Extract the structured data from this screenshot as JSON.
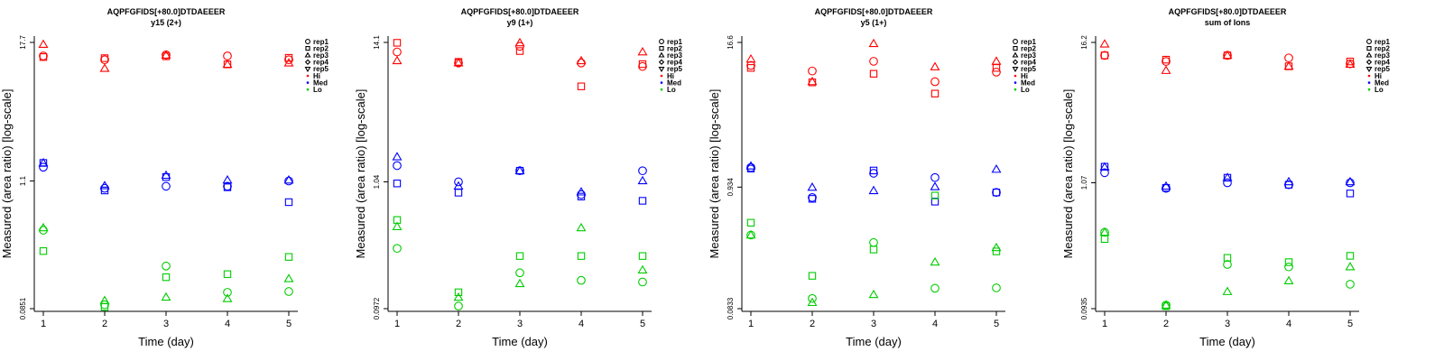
{
  "chart_data": [
    {
      "type": "scatter",
      "title": "AQPFGFIDS[+80.0]DTDAEEER",
      "subtitle": "y15 (2+)",
      "xlabel": "Time (day)",
      "ylabel": "Measured (area ratio) [log-scale]",
      "x_ticks": [
        "1",
        "2",
        "3",
        "4",
        "5"
      ],
      "y_ticks": [
        "0.0851",
        "1.1",
        "17.7"
      ],
      "y_scale": "log",
      "ylim": [
        0.0851,
        17.7
      ],
      "legend_position": "right",
      "legend": [
        {
          "label": "rep1",
          "marker": "circle"
        },
        {
          "label": "rep2",
          "marker": "square"
        },
        {
          "label": "rep3",
          "marker": "triangle"
        },
        {
          "label": "rep4",
          "marker": "diamond"
        },
        {
          "label": "rep5",
          "marker": "triangle-down"
        },
        {
          "label": "Hi",
          "color": "#ff0000"
        },
        {
          "label": "Med",
          "color": "#0000ff"
        },
        {
          "label": "Lo",
          "color": "#00cc00"
        }
      ],
      "series": [
        {
          "level": "Hi",
          "rep": "rep1",
          "x": [
            1,
            2,
            3,
            4,
            5
          ],
          "y": [
            13.5,
            12.5,
            13.8,
            13.5,
            12.5
          ]
        },
        {
          "level": "Hi",
          "rep": "rep2",
          "x": [
            1,
            2,
            3,
            4,
            5
          ],
          "y": [
            13.2,
            12.9,
            13.4,
            11.4,
            13.0
          ]
        },
        {
          "level": "Hi",
          "rep": "rep3",
          "x": [
            1,
            2,
            3,
            4,
            5
          ],
          "y": [
            17.0,
            10.5,
            13.7,
            11.4,
            11.7
          ]
        },
        {
          "level": "Med",
          "rep": "rep1",
          "x": [
            1,
            2,
            3,
            4,
            5
          ],
          "y": [
            1.45,
            0.95,
            0.99,
            0.99,
            1.1
          ]
        },
        {
          "level": "Med",
          "rep": "rep2",
          "x": [
            1,
            2,
            3,
            4,
            5
          ],
          "y": [
            1.58,
            0.91,
            1.19,
            0.97,
            0.72
          ]
        },
        {
          "level": "Med",
          "rep": "rep3",
          "x": [
            1,
            2,
            3,
            4,
            5
          ],
          "y": [
            1.58,
            1.0,
            1.23,
            1.12,
            1.12
          ]
        },
        {
          "level": "Lo",
          "rep": "rep1",
          "x": [
            1,
            2,
            3,
            4,
            5
          ],
          "y": [
            0.41,
            0.092,
            0.2,
            0.118,
            0.12
          ]
        },
        {
          "level": "Lo",
          "rep": "rep2",
          "x": [
            1,
            2,
            3,
            4,
            5
          ],
          "y": [
            0.27,
            0.088,
            0.16,
            0.17,
            0.24
          ]
        },
        {
          "level": "Lo",
          "rep": "rep3",
          "x": [
            1,
            2,
            3,
            4,
            5
          ],
          "y": [
            0.43,
            0.1,
            0.107,
            0.104,
            0.155
          ]
        }
      ]
    },
    {
      "type": "scatter",
      "title": "AQPFGFIDS[+80.0]DTDAEEER",
      "subtitle": "y9 (1+)",
      "xlabel": "Time (day)",
      "ylabel": "Measured (area ratio) [log-scale]",
      "x_ticks": [
        "1",
        "2",
        "3",
        "4",
        "5"
      ],
      "y_ticks": [
        "0.0972",
        "1.04",
        "14.1"
      ],
      "y_scale": "log",
      "ylim": [
        0.0972,
        14.1
      ],
      "legend_position": "right",
      "legend": [
        {
          "label": "rep1",
          "marker": "circle"
        },
        {
          "label": "rep2",
          "marker": "square"
        },
        {
          "label": "rep3",
          "marker": "triangle"
        },
        {
          "label": "rep4",
          "marker": "diamond"
        },
        {
          "label": "rep5",
          "marker": "triangle-down"
        },
        {
          "label": "Hi",
          "color": "#ff0000"
        },
        {
          "label": "Med",
          "color": "#0000ff"
        },
        {
          "label": "Lo",
          "color": "#00cc00"
        }
      ],
      "series": [
        {
          "level": "Hi",
          "rep": "rep1",
          "x": [
            1,
            2,
            3,
            4,
            5
          ],
          "y": [
            11.8,
            9.6,
            13.1,
            9.6,
            9.0
          ]
        },
        {
          "level": "Hi",
          "rep": "rep2",
          "x": [
            1,
            2,
            3,
            4,
            5
          ],
          "y": [
            14.0,
            9.8,
            12.0,
            6.2,
            9.4
          ]
        },
        {
          "level": "Hi",
          "rep": "rep3",
          "x": [
            1,
            2,
            3,
            4,
            5
          ],
          "y": [
            10.0,
            9.6,
            14.0,
            10.0,
            11.8
          ]
        },
        {
          "level": "Med",
          "rep": "rep1",
          "x": [
            1,
            2,
            3,
            4,
            5
          ],
          "y": [
            1.41,
            1.04,
            1.28,
            0.82,
            1.28
          ]
        },
        {
          "level": "Med",
          "rep": "rep2",
          "x": [
            1,
            2,
            3,
            4,
            5
          ],
          "y": [
            1.01,
            0.85,
            1.28,
            0.79,
            0.73
          ]
        },
        {
          "level": "Med",
          "rep": "rep3",
          "x": [
            1,
            2,
            3,
            4,
            5
          ],
          "y": [
            1.66,
            0.96,
            1.28,
            0.86,
            1.06
          ]
        },
        {
          "level": "Lo",
          "rep": "rep1",
          "x": [
            1,
            2,
            3,
            4,
            5
          ],
          "y": [
            0.3,
            0.102,
            0.19,
            0.165,
            0.16
          ]
        },
        {
          "level": "Lo",
          "rep": "rep2",
          "x": [
            1,
            2,
            3,
            4,
            5
          ],
          "y": [
            0.51,
            0.132,
            0.26,
            0.26,
            0.26
          ]
        },
        {
          "level": "Lo",
          "rep": "rep3",
          "x": [
            1,
            2,
            3,
            4,
            5
          ],
          "y": [
            0.45,
            0.12,
            0.155,
            0.44,
            0.2
          ]
        }
      ]
    },
    {
      "type": "scatter",
      "title": "AQPFGFIDS[+80.0]DTDAEEER",
      "subtitle": "y5 (1+)",
      "xlabel": "Time (day)",
      "ylabel": "Measured (area ratio) [log-scale]",
      "x_ticks": [
        "1",
        "2",
        "3",
        "4",
        "5"
      ],
      "y_ticks": [
        "0.0833",
        "0.934",
        "16.6"
      ],
      "y_scale": "log",
      "ylim": [
        0.0833,
        16.6
      ],
      "legend_position": "right",
      "legend": [
        {
          "label": "rep1",
          "marker": "circle"
        },
        {
          "label": "rep2",
          "marker": "square"
        },
        {
          "label": "rep3",
          "marker": "triangle"
        },
        {
          "label": "rep4",
          "marker": "diamond"
        },
        {
          "label": "rep5",
          "marker": "triangle-down"
        },
        {
          "label": "Hi",
          "color": "#ff0000"
        },
        {
          "label": "Med",
          "color": "#0000ff"
        },
        {
          "label": "Lo",
          "color": "#00cc00"
        }
      ],
      "series": [
        {
          "level": "Hi",
          "rep": "rep1",
          "x": [
            1,
            2,
            3,
            4,
            5
          ],
          "y": [
            10.5,
            9.4,
            11.4,
            7.6,
            9.2
          ]
        },
        {
          "level": "Hi",
          "rep": "rep2",
          "x": [
            1,
            2,
            3,
            4,
            5
          ],
          "y": [
            10.0,
            7.5,
            8.9,
            6.0,
            10.0
          ]
        },
        {
          "level": "Hi",
          "rep": "rep3",
          "x": [
            1,
            2,
            3,
            4,
            5
          ],
          "y": [
            11.9,
            7.6,
            16.2,
            10.2,
            11.4
          ]
        },
        {
          "level": "Med",
          "rep": "rep1",
          "x": [
            1,
            2,
            3,
            4,
            5
          ],
          "y": [
            1.38,
            0.76,
            1.23,
            1.13,
            0.84
          ]
        },
        {
          "level": "Med",
          "rep": "rep2",
          "x": [
            1,
            2,
            3,
            4,
            5
          ],
          "y": [
            1.35,
            0.74,
            1.3,
            0.7,
            0.84
          ]
        },
        {
          "level": "Med",
          "rep": "rep3",
          "x": [
            1,
            2,
            3,
            4,
            5
          ],
          "y": [
            1.42,
            0.93,
            0.87,
            0.94,
            1.33
          ]
        },
        {
          "level": "Lo",
          "rep": "rep1",
          "x": [
            1,
            2,
            3,
            4,
            5
          ],
          "y": [
            0.36,
            0.102,
            0.31,
            0.125,
            0.126
          ]
        },
        {
          "level": "Lo",
          "rep": "rep2",
          "x": [
            1,
            2,
            3,
            4,
            5
          ],
          "y": [
            0.46,
            0.16,
            0.27,
            0.79,
            0.26
          ]
        },
        {
          "level": "Lo",
          "rep": "rep3",
          "x": [
            1,
            2,
            3,
            4,
            5
          ],
          "y": [
            0.36,
            0.094,
            0.11,
            0.21,
            0.28
          ]
        }
      ]
    },
    {
      "type": "scatter",
      "title": "AQPFGFIDS[+80.0]DTDAEEER",
      "subtitle": "sum of Ions",
      "xlabel": "Time (day)",
      "ylabel": "Measured (area ratio) [log-scale]",
      "x_ticks": [
        "1",
        "2",
        "3",
        "4",
        "5"
      ],
      "y_ticks": [
        "0.0935",
        "1.07",
        "16.2"
      ],
      "y_scale": "log",
      "ylim": [
        0.0935,
        16.2
      ],
      "legend_position": "right",
      "legend": [
        {
          "label": "rep1",
          "marker": "circle"
        },
        {
          "label": "rep2",
          "marker": "square"
        },
        {
          "label": "rep3",
          "marker": "triangle"
        },
        {
          "label": "rep4",
          "marker": "diamond"
        },
        {
          "label": "rep5",
          "marker": "triangle-down"
        },
        {
          "label": "Hi",
          "color": "#ff0000"
        },
        {
          "label": "Med",
          "color": "#0000ff"
        },
        {
          "label": "Lo",
          "color": "#00cc00"
        }
      ],
      "series": [
        {
          "level": "Hi",
          "rep": "rep1",
          "x": [
            1,
            2,
            3,
            4,
            5
          ],
          "y": [
            12.6,
            11.2,
            12.6,
            12.0,
            10.7
          ]
        },
        {
          "level": "Hi",
          "rep": "rep2",
          "x": [
            1,
            2,
            3,
            4,
            5
          ],
          "y": [
            12.6,
            11.6,
            12.6,
            10.2,
            11.2
          ]
        },
        {
          "level": "Hi",
          "rep": "rep3",
          "x": [
            1,
            2,
            3,
            4,
            5
          ],
          "y": [
            15.7,
            9.4,
            12.6,
            10.2,
            10.6
          ]
        },
        {
          "level": "Med",
          "rep": "rep1",
          "x": [
            1,
            2,
            3,
            4,
            5
          ],
          "y": [
            1.3,
            0.96,
            1.07,
            1.03,
            1.07
          ]
        },
        {
          "level": "Med",
          "rep": "rep2",
          "x": [
            1,
            2,
            3,
            4,
            5
          ],
          "y": [
            1.46,
            0.97,
            1.18,
            1.03,
            0.87
          ]
        },
        {
          "level": "Med",
          "rep": "rep3",
          "x": [
            1,
            2,
            3,
            4,
            5
          ],
          "y": [
            1.45,
            1.0,
            1.18,
            1.09,
            1.09
          ]
        },
        {
          "level": "Lo",
          "rep": "rep1",
          "x": [
            1,
            2,
            3,
            4,
            5
          ],
          "y": [
            0.41,
            0.1,
            0.22,
            0.21,
            0.15
          ]
        },
        {
          "level": "Lo",
          "rep": "rep2",
          "x": [
            1,
            2,
            3,
            4,
            5
          ],
          "y": [
            0.36,
            0.098,
            0.25,
            0.23,
            0.26
          ]
        },
        {
          "level": "Lo",
          "rep": "rep3",
          "x": [
            1,
            2,
            3,
            4,
            5
          ],
          "y": [
            0.41,
            0.1,
            0.13,
            0.16,
            0.21
          ]
        }
      ]
    }
  ]
}
